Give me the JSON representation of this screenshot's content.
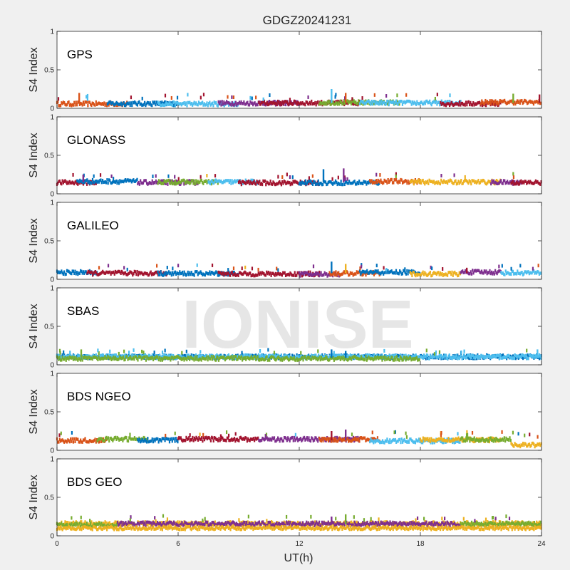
{
  "chart_data": {
    "type": "scatter",
    "title": "GDGZ20241231",
    "xlabel": "UT(h)",
    "ylabel": "S4 Index",
    "xlim": [
      0,
      24
    ],
    "xticks": [
      "0",
      "6",
      "12",
      "18",
      "24"
    ],
    "ylim": [
      0,
      1
    ],
    "yticks": [
      "0",
      "0.5",
      "1"
    ],
    "watermark": "IONISE",
    "colors": [
      "#0072BD",
      "#D95319",
      "#EDB120",
      "#7E2F8E",
      "#77AC30",
      "#4DBEEE",
      "#A2142F"
    ],
    "panels": [
      {
        "name": "GPS",
        "baseline": 0.07,
        "segments": [
          {
            "color": "#D95319",
            "from": 0,
            "to": 3.5
          },
          {
            "color": "#0072BD",
            "from": 2.5,
            "to": 6
          },
          {
            "color": "#4DBEEE",
            "from": 5,
            "to": 9
          },
          {
            "color": "#7E2F8E",
            "from": 8,
            "to": 12
          },
          {
            "color": "#A2142F",
            "from": 10,
            "to": 15
          },
          {
            "color": "#77AC30",
            "from": 13,
            "to": 17
          },
          {
            "color": "#4DBEEE",
            "from": 15,
            "to": 20
          },
          {
            "color": "#A2142F",
            "from": 19,
            "to": 22
          },
          {
            "color": "#D95319",
            "from": 21,
            "to": 24
          }
        ],
        "spikes": [
          {
            "x": 1.1,
            "y": 0.2
          },
          {
            "x": 13.6,
            "y": 0.25
          },
          {
            "x": 14.3,
            "y": 0.2
          },
          {
            "x": 22.6,
            "y": 0.19
          },
          {
            "x": 23.9,
            "y": 0.18
          }
        ]
      },
      {
        "name": "GLONASS",
        "baseline": 0.15,
        "segments": [
          {
            "color": "#A2142F",
            "from": 0,
            "to": 2
          },
          {
            "color": "#0072BD",
            "from": 1,
            "to": 4
          },
          {
            "color": "#7E2F8E",
            "from": 4,
            "to": 7
          },
          {
            "color": "#77AC30",
            "from": 5,
            "to": 8
          },
          {
            "color": "#4DBEEE",
            "from": 7.5,
            "to": 10
          },
          {
            "color": "#A2142F",
            "from": 9,
            "to": 13
          },
          {
            "color": "#0072BD",
            "from": 12,
            "to": 16
          },
          {
            "color": "#D95319",
            "from": 15.5,
            "to": 18
          },
          {
            "color": "#EDB120",
            "from": 17.5,
            "to": 22
          },
          {
            "color": "#7E2F8E",
            "from": 21.5,
            "to": 23
          },
          {
            "color": "#A2142F",
            "from": 22.5,
            "to": 24
          }
        ],
        "spikes": [
          {
            "x": 1.3,
            "y": 0.25
          },
          {
            "x": 13.2,
            "y": 0.32
          },
          {
            "x": 14.2,
            "y": 0.33
          }
        ]
      },
      {
        "name": "GALILEO",
        "baseline": 0.08,
        "segments": [
          {
            "color": "#0072BD",
            "from": 0,
            "to": 2
          },
          {
            "color": "#A2142F",
            "from": 1.5,
            "to": 5.5
          },
          {
            "color": "#0072BD",
            "from": 5,
            "to": 9
          },
          {
            "color": "#A2142F",
            "from": 8,
            "to": 13
          },
          {
            "color": "#7E2F8E",
            "from": 12,
            "to": 14
          },
          {
            "color": "#D95319",
            "from": 13.5,
            "to": 16
          },
          {
            "color": "#0072BD",
            "from": 15,
            "to": 18
          },
          {
            "color": "#EDB120",
            "from": 17.5,
            "to": 20
          },
          {
            "color": "#7E2F8E",
            "from": 20,
            "to": 22
          },
          {
            "color": "#4DBEEE",
            "from": 22,
            "to": 24
          }
        ],
        "spikes": [
          {
            "x": 13.6,
            "y": 0.23
          },
          {
            "x": 14.3,
            "y": 0.2
          },
          {
            "x": 20.3,
            "y": 0.15
          }
        ]
      },
      {
        "name": "SBAS",
        "baseline": 0.09,
        "segments": [
          {
            "color": "#0072BD",
            "from": 0,
            "to": 24
          },
          {
            "color": "#4DBEEE",
            "from": 0,
            "to": 24
          },
          {
            "color": "#77AC30",
            "from": 0,
            "to": 18
          }
        ],
        "spikes": [
          {
            "x": 1.2,
            "y": 0.2
          },
          {
            "x": 13.6,
            "y": 0.2
          },
          {
            "x": 14.3,
            "y": 0.18
          },
          {
            "x": 23.8,
            "y": 0.2
          }
        ]
      },
      {
        "name": "BDS NGEO",
        "baseline": 0.13,
        "segments": [
          {
            "color": "#D95319",
            "from": 0,
            "to": 2.5
          },
          {
            "color": "#77AC30",
            "from": 2,
            "to": 4.5
          },
          {
            "color": "#0072BD",
            "from": 4,
            "to": 6
          },
          {
            "color": "#A2142F",
            "from": 6,
            "to": 10
          },
          {
            "color": "#7E2F8E",
            "from": 10,
            "to": 15
          },
          {
            "color": "#D95319",
            "from": 13,
            "to": 16
          },
          {
            "color": "#4DBEEE",
            "from": 15.5,
            "to": 20
          },
          {
            "color": "#EDB120",
            "from": 18,
            "to": 22
          },
          {
            "color": "#77AC30",
            "from": 20,
            "to": 22.5
          },
          {
            "color": "#EDB120",
            "from": 22.5,
            "to": 24
          }
        ],
        "spikes": [
          {
            "x": 13.6,
            "y": 0.25
          },
          {
            "x": 14.3,
            "y": 0.27
          },
          {
            "x": 20.3,
            "y": 0.22
          }
        ],
        "dip": {
          "from": 22.5,
          "to": 24,
          "value": 0.07
        }
      },
      {
        "name": "BDS GEO",
        "baseline": 0.15,
        "segments": [
          {
            "color": "#EDB120",
            "from": 0,
            "to": 24
          },
          {
            "color": "#77AC30",
            "from": 0,
            "to": 3
          },
          {
            "color": "#7E2F8E",
            "from": 3,
            "to": 20
          },
          {
            "color": "#77AC30",
            "from": 20,
            "to": 24
          }
        ],
        "spikes": [
          {
            "x": 13.6,
            "y": 0.25
          },
          {
            "x": 14.3,
            "y": 0.28
          }
        ],
        "secondary": {
          "color": "#EDB120",
          "value": 0.1
        }
      }
    ]
  }
}
